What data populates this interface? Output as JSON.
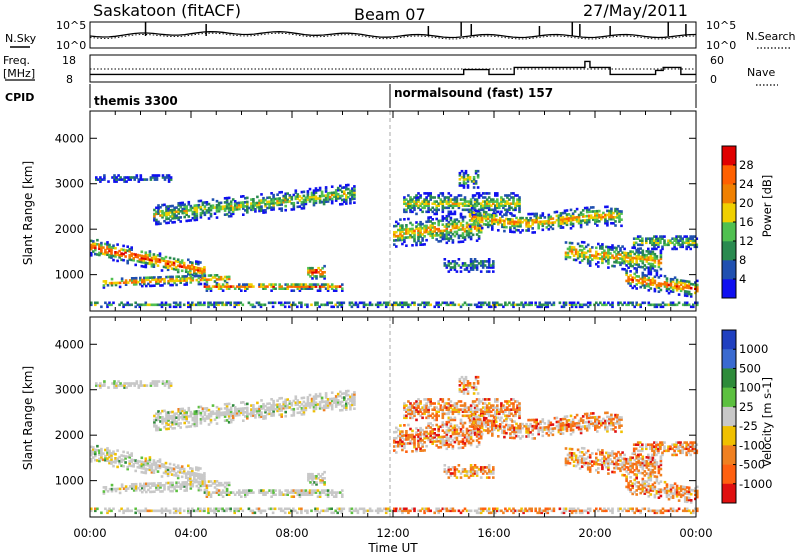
{
  "header": {
    "station": "Saskatoon (fitACF)",
    "beam": "Beam 07",
    "date": "27/May/2011"
  },
  "noise_panel": {
    "left_label": "N.Sky",
    "left_ticks": [
      "10^5",
      "10^0"
    ],
    "right_label": "N.Search",
    "right_ticks": [
      "10^5",
      "10^0"
    ]
  },
  "freq_panel": {
    "left_label_1": "Freq.",
    "left_label_2": "[MHz]",
    "left_ticks": [
      "18",
      "8"
    ],
    "right_label": "Nave",
    "right_ticks": [
      "60",
      "0"
    ]
  },
  "cpid": {
    "label": "CPID",
    "modes": [
      {
        "name": "themis 3300",
        "start_hour": 0
      },
      {
        "name": "normalsound (fast) 157",
        "start_hour": 12
      }
    ]
  },
  "chart_data": [
    {
      "type": "heatmap",
      "id": "power",
      "ylabel": "Slant Range [km]",
      "ylim": [
        200,
        4600
      ],
      "y_ticks": [
        1000,
        2000,
        3000,
        4000
      ],
      "xlim": [
        0,
        24
      ],
      "x_ticks": [
        0,
        4,
        8,
        12,
        16,
        20,
        24
      ],
      "colorbar": {
        "label": "Power [dB]",
        "ticks": [
          "4",
          "8",
          "12",
          "16",
          "20",
          "24",
          "28"
        ],
        "colors": [
          "#1010f0",
          "#2050b0",
          "#2a8a50",
          "#50c050",
          "#f0d000",
          "#f08000",
          "#ff6000",
          "#e00000"
        ]
      }
    },
    {
      "type": "heatmap",
      "id": "velocity",
      "ylabel": "Slant Range [km]",
      "ylim": [
        200,
        4600
      ],
      "y_ticks": [
        1000,
        2000,
        3000,
        4000
      ],
      "xlim": [
        0,
        24
      ],
      "x_ticks": [
        0,
        4,
        8,
        12,
        16,
        20,
        24
      ],
      "xlabel": "Time UT",
      "x_tick_labels": [
        "00:00",
        "04:00",
        "08:00",
        "12:00",
        "16:00",
        "20:00",
        "00:00"
      ],
      "colorbar": {
        "label": "Velocity [m s-1]",
        "ticks": [
          "1000",
          "500",
          "100",
          "25",
          "-25",
          "-100",
          "-500",
          "-1000"
        ],
        "colors": [
          "#2040c0",
          "#3a6ad0",
          "#2e8b3a",
          "#5cc040",
          "#c8c8c8",
          "#f0c000",
          "#f08020",
          "#ff6010",
          "#e01010"
        ]
      }
    }
  ]
}
